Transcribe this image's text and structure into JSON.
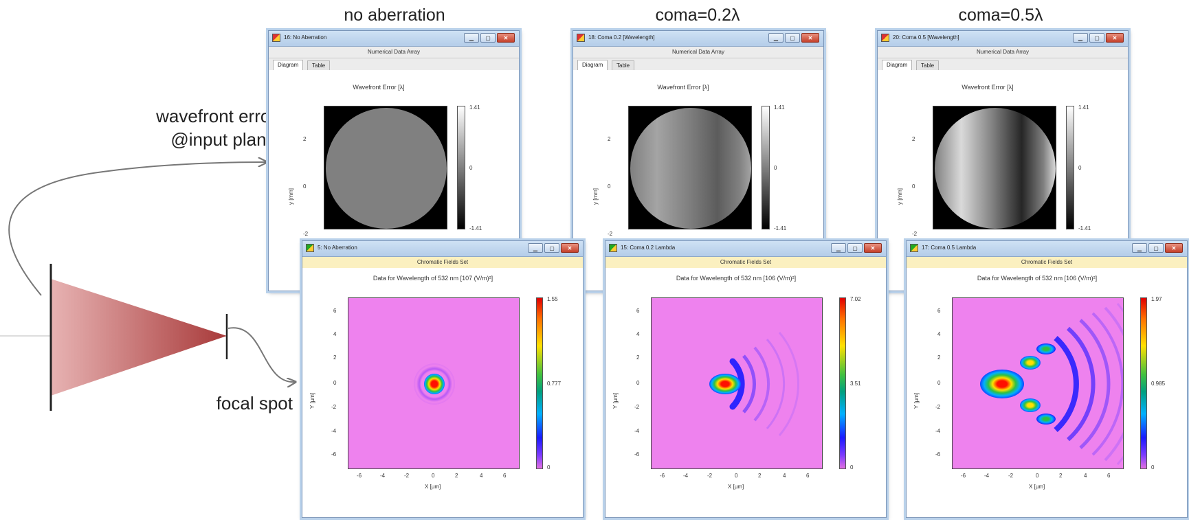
{
  "column_titles": [
    "no aberration",
    "coma=0.2λ",
    "coma=0.5λ"
  ],
  "labels": {
    "wavefront_line1": "wavefront error",
    "wavefront_line2": "@input plane",
    "focal_spot": "focal spot"
  },
  "wavefront_windows": [
    {
      "title": "16: No Aberration",
      "subheader": "Numerical Data Array",
      "tabs": [
        "Diagram",
        "Table"
      ],
      "plot_title": "Wavefront Error [λ]",
      "y_axis_label": "y [mm]",
      "y_ticks": [
        "2",
        "0",
        "-2"
      ],
      "colorbar": {
        "max": "1.41",
        "mid": "0",
        "min": "-1.41"
      },
      "coma_level": 0
    },
    {
      "title": "18: Coma 0.2 [Wavelength]",
      "subheader": "Numerical Data Array",
      "tabs": [
        "Diagram",
        "Table"
      ],
      "plot_title": "Wavefront Error [λ]",
      "y_axis_label": "y [mm]",
      "y_ticks": [
        "2",
        "0",
        "-2"
      ],
      "colorbar": {
        "max": "1.41",
        "mid": "0",
        "min": "-1.41"
      },
      "coma_level": 0.2
    },
    {
      "title": "20: Coma 0.5 [Wavelength]",
      "subheader": "Numerical Data Array",
      "tabs": [
        "Diagram",
        "Table"
      ],
      "plot_title": "Wavefront Error [λ]",
      "y_axis_label": "y [mm]",
      "y_ticks": [
        "2",
        "0",
        "-2"
      ],
      "colorbar": {
        "max": "1.41",
        "mid": "0",
        "min": "-1.41"
      },
      "coma_level": 0.5
    }
  ],
  "focal_windows": [
    {
      "title": "5: No Aberration",
      "subheader": "Chromatic Fields Set",
      "plot_title": "Data for Wavelength of 532 nm  [107 (V/m)²]",
      "x_axis_label": "X [µm]",
      "y_axis_label": "Y [µm]",
      "x_ticks": [
        "-6",
        "-4",
        "-2",
        "0",
        "2",
        "4",
        "6"
      ],
      "y_ticks": [
        "6",
        "4",
        "2",
        "0",
        "-2",
        "-4",
        "-6"
      ],
      "colorbar": {
        "max": "1.55",
        "mid": "0.777",
        "min": "0"
      }
    },
    {
      "title": "15: Coma 0.2 Lambda",
      "subheader": "Chromatic Fields Set",
      "plot_title": "Data for Wavelength of 532 nm  [106 (V/m)²]",
      "x_axis_label": "X [µm]",
      "y_axis_label": "Y [µm]",
      "x_ticks": [
        "-6",
        "-4",
        "-2",
        "0",
        "2",
        "4",
        "6"
      ],
      "y_ticks": [
        "6",
        "4",
        "2",
        "0",
        "-2",
        "-4",
        "-6"
      ],
      "colorbar": {
        "max": "7.02",
        "mid": "3.51",
        "min": "0"
      }
    },
    {
      "title": "17: Coma 0.5 Lambda",
      "subheader": "Chromatic Fields Set",
      "plot_title": "Data for Wavelength of 532 nm  [106 (V/m)²]",
      "x_axis_label": "X [µm]",
      "y_axis_label": "Y [µm]",
      "x_ticks": [
        "-6",
        "-4",
        "-2",
        "0",
        "2",
        "4",
        "6"
      ],
      "y_ticks": [
        "6",
        "4",
        "2",
        "0",
        "-2",
        "-4",
        "-6"
      ],
      "colorbar": {
        "max": "1.97",
        "mid": "0.985",
        "min": "0"
      }
    }
  ],
  "colors": {
    "field_background": "#ee82ee",
    "lens_fill": "#c05a5a"
  }
}
